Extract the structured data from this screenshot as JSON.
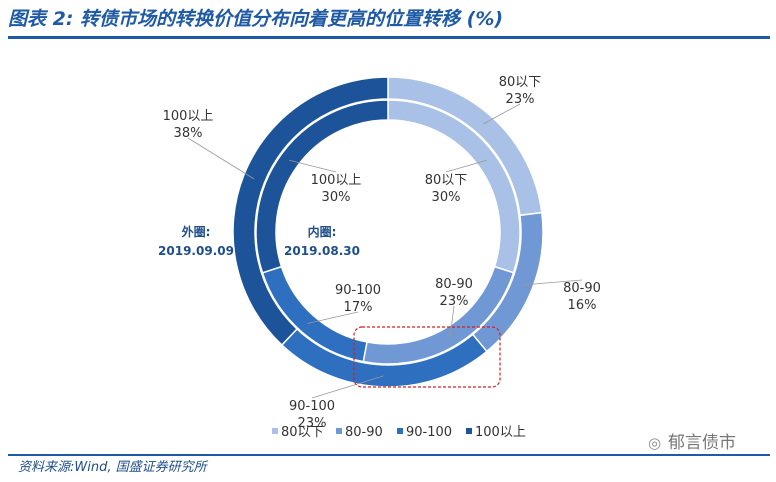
{
  "title": "图表 2:  转债市场的转换价值分布向着更高的位置转移 (%)",
  "source": "资料来源:Wind, 国盛证券研究所",
  "watermark": "郁言债市",
  "colors": {
    "title": "#1f5aa6",
    "80以下": "#a9c1e6",
    "80-90": "#6f98d5",
    "90-100": "#2e6fbf",
    "100以上": "#1d5499",
    "highlight": "#d81e1e"
  },
  "chart_data": {
    "type": "donut",
    "categories": [
      "80以下",
      "80-90",
      "90-100",
      "100以上"
    ],
    "series": [
      {
        "name": "外圈: 2019.09.09",
        "ring": "outer",
        "title_line1": "外圈:",
        "title_line2": "2019.09.09",
        "values": [
          23,
          16,
          23,
          38
        ]
      },
      {
        "name": "内圈: 2019.08.30",
        "ring": "inner",
        "title_line1": "内圈:",
        "title_line2": "2019.08.30",
        "values": [
          30,
          23,
          17,
          30
        ]
      }
    ],
    "unit": "%",
    "legend": [
      "80以下",
      "80-90",
      "90-100",
      "100以上"
    ],
    "legend_position": "bottom-right",
    "annotation": "dashed red box highlighting the 90-100 segment"
  }
}
